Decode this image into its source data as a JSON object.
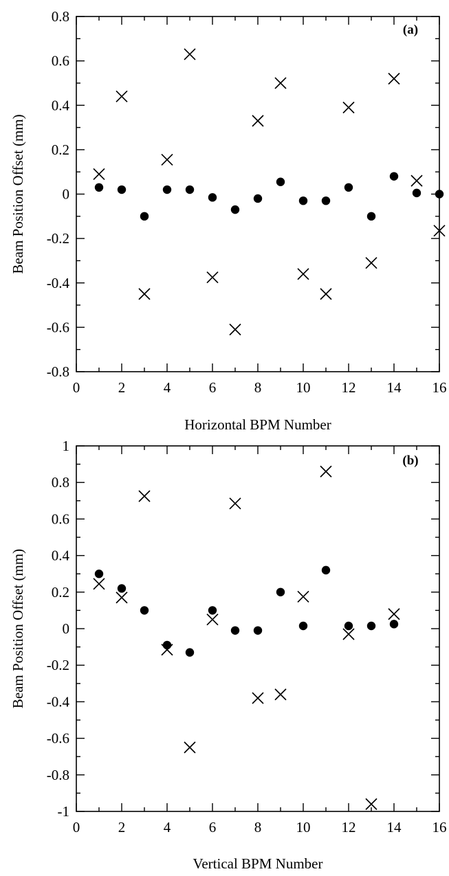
{
  "chart_data": [
    {
      "type": "scatter",
      "panel_label": "(a)",
      "xlabel": "Horizontal BPM Number",
      "ylabel": "Beam Position Offset (mm)",
      "xlim": [
        0,
        16
      ],
      "ylim": [
        -0.8,
        0.8
      ],
      "x_ticks": [
        0,
        2,
        4,
        6,
        8,
        10,
        12,
        14,
        16
      ],
      "x_tick_labels": [
        "0",
        "2",
        "4",
        "6",
        "8",
        "10",
        "12",
        "14",
        "16"
      ],
      "y_ticks": [
        -0.8,
        -0.6,
        -0.4,
        -0.2,
        0,
        0.2,
        0.4,
        0.6,
        0.8
      ],
      "y_tick_labels": [
        "-0.8",
        "-0.6",
        "-0.4",
        "-0.2",
        "0",
        "0.2",
        "0.4",
        "0.6",
        "0.8"
      ],
      "grid": false,
      "series": [
        {
          "marker": "circle",
          "x": [
            1,
            2,
            3,
            4,
            5,
            6,
            7,
            8,
            9,
            10,
            11,
            12,
            13,
            14,
            15,
            16
          ],
          "y": [
            0.03,
            0.02,
            -0.1,
            0.02,
            0.02,
            -0.015,
            -0.07,
            -0.02,
            0.055,
            -0.03,
            -0.03,
            0.03,
            -0.1,
            0.08,
            0.005,
            0.0
          ]
        },
        {
          "marker": "cross",
          "x": [
            1,
            2,
            3,
            4,
            5,
            6,
            7,
            8,
            9,
            10,
            11,
            12,
            13,
            14,
            15,
            16
          ],
          "y": [
            0.09,
            0.44,
            -0.45,
            0.155,
            0.63,
            -0.375,
            -0.61,
            0.33,
            0.5,
            -0.36,
            -0.45,
            0.39,
            -0.31,
            0.52,
            0.06,
            -0.165
          ]
        }
      ]
    },
    {
      "type": "scatter",
      "panel_label": "(b)",
      "xlabel": "Vertical BPM Number",
      "ylabel": "Beam Position Offset (mm)",
      "xlim": [
        0,
        16
      ],
      "ylim": [
        -1,
        1
      ],
      "x_ticks": [
        0,
        2,
        4,
        6,
        8,
        10,
        12,
        14,
        16
      ],
      "x_tick_labels": [
        "0",
        "2",
        "4",
        "6",
        "8",
        "10",
        "12",
        "14",
        "16"
      ],
      "y_ticks": [
        -1,
        -0.8,
        -0.6,
        -0.4,
        -0.2,
        0,
        0.2,
        0.4,
        0.6,
        0.8,
        1
      ],
      "y_tick_labels": [
        "-1",
        "-0.8",
        "-0.6",
        "-0.4",
        "-0.2",
        "0",
        "0.2",
        "0.4",
        "0.6",
        "0.8",
        "1"
      ],
      "grid": false,
      "series": [
        {
          "marker": "circle",
          "x": [
            1,
            2,
            3,
            4,
            5,
            6,
            7,
            8,
            9,
            10,
            11,
            12,
            13,
            14
          ],
          "y": [
            0.3,
            0.22,
            0.1,
            -0.09,
            -0.13,
            0.1,
            -0.01,
            -0.01,
            0.2,
            0.015,
            0.32,
            0.015,
            0.015,
            0.025
          ]
        },
        {
          "marker": "cross",
          "x": [
            1,
            2,
            3,
            4,
            5,
            6,
            7,
            8,
            9,
            10,
            11,
            12,
            13,
            14
          ],
          "y": [
            0.245,
            0.17,
            0.725,
            -0.115,
            -0.65,
            0.05,
            0.685,
            -0.38,
            -0.36,
            0.175,
            0.86,
            -0.03,
            -0.96,
            0.08
          ]
        }
      ]
    }
  ]
}
